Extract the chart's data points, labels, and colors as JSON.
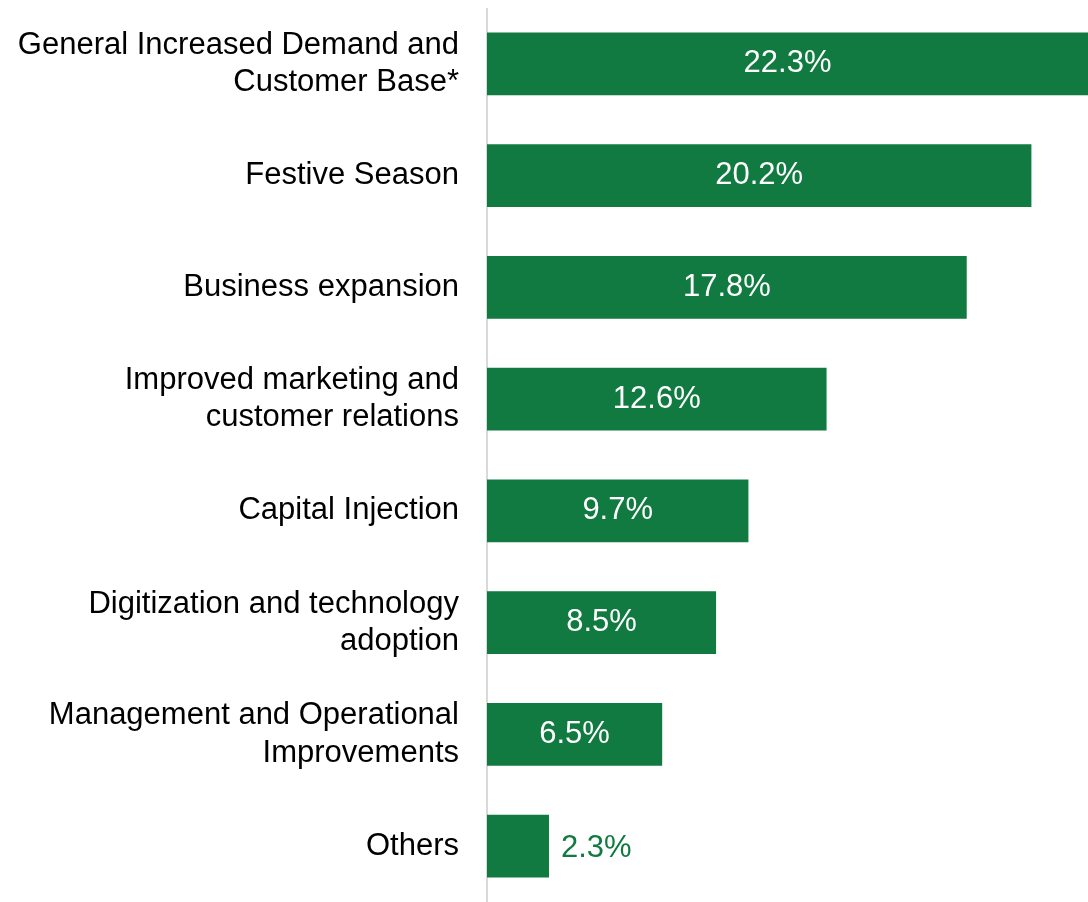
{
  "chart_data": {
    "type": "bar",
    "orientation": "horizontal",
    "categories": [
      "General Increased Demand and Customer Base*",
      "Festive Season",
      "Business expansion",
      "Improved marketing and customer relations",
      "Capital Injection",
      "Digitization and technology adoption",
      "Management and Operational Improvements",
      "Others"
    ],
    "values": [
      22.3,
      20.2,
      17.8,
      12.6,
      9.7,
      8.5,
      6.5,
      2.3
    ],
    "value_labels": [
      "22.3%",
      "20.2%",
      "17.8%",
      "12.6%",
      "9.7%",
      "8.5%",
      "6.5%",
      "2.3%"
    ],
    "color": "#107a40"
  }
}
